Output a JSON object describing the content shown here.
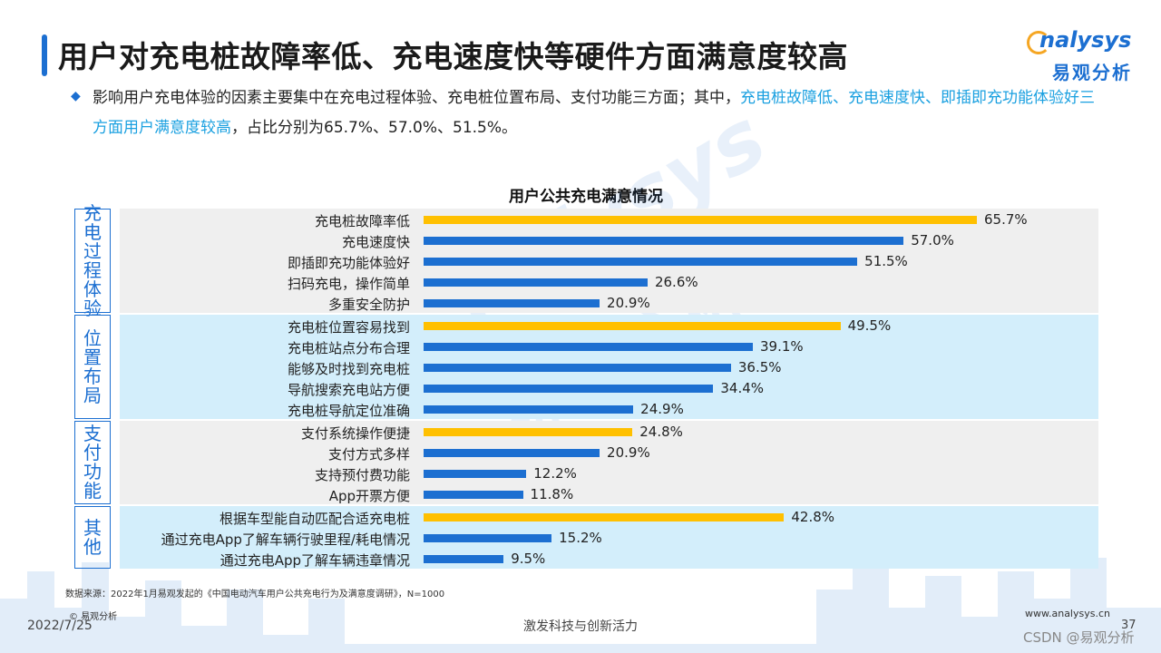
{
  "header": {
    "title": "用户对充电桩故障率低、充电速度快等硬件方面满意度较高",
    "logo_text": "nalysys",
    "logo_cn": "易观分析"
  },
  "description": {
    "part1": "影响用户充电体验的因素主要集中在充电过程体验、充电桩位置布局、支付功能三方面；其中，",
    "highlight": "充电桩故障低、充电速度快、即插即充功能体验好三方面用户满意度较高",
    "part2": "，占比分别为65.7%、57.0%、51.5%。"
  },
  "colors": {
    "highlight_bar": "#ffc000",
    "normal_bar": "#1c6fd1",
    "group_gray": "#efefef",
    "group_blue": "#d3eefb"
  },
  "chart_data": {
    "type": "bar",
    "orientation": "horizontal",
    "title": "用户公共充电满意情况",
    "value_unit": "%",
    "groups": [
      {
        "name": "充电过程体验",
        "items": [
          {
            "label": "充电桩故障率低",
            "value": 65.7,
            "highlight": true
          },
          {
            "label": "充电速度快",
            "value": 57.0,
            "highlight": false
          },
          {
            "label": "即插即充功能体验好",
            "value": 51.5,
            "highlight": false
          },
          {
            "label": "扫码充电，操作简单",
            "value": 26.6,
            "highlight": false
          },
          {
            "label": "多重安全防护",
            "value": 20.9,
            "highlight": false
          }
        ]
      },
      {
        "name": "位置布局",
        "items": [
          {
            "label": "充电桩位置容易找到",
            "value": 49.5,
            "highlight": true
          },
          {
            "label": "充电桩站点分布合理",
            "value": 39.1,
            "highlight": false
          },
          {
            "label": "能够及时找到充电桩",
            "value": 36.5,
            "highlight": false
          },
          {
            "label": "导航搜索充电站方便",
            "value": 34.4,
            "highlight": false
          },
          {
            "label": "充电桩导航定位准确",
            "value": 24.9,
            "highlight": false
          }
        ]
      },
      {
        "name": "支付功能",
        "items": [
          {
            "label": "支付系统操作便捷",
            "value": 24.8,
            "highlight": true
          },
          {
            "label": "支付方式多样",
            "value": 20.9,
            "highlight": false
          },
          {
            "label": "支持预付费功能",
            "value": 12.2,
            "highlight": false
          },
          {
            "label": "App开票方便",
            "value": 11.8,
            "highlight": false
          }
        ]
      },
      {
        "name": "其他",
        "items": [
          {
            "label": "根据车型能自动匹配合适充电桩",
            "value": 42.8,
            "highlight": true
          },
          {
            "label": "通过充电App了解车辆行驶里程/耗电情况",
            "value": 15.2,
            "highlight": false
          },
          {
            "label": "通过充电App了解车辆违章情况",
            "value": 9.5,
            "highlight": false
          }
        ]
      }
    ]
  },
  "footer": {
    "source": "数据来源：2022年1月易观发起的《中国电动汽车用户公共充电行为及满意度调研》，N=1000",
    "copyright": "© 易观分析",
    "date": "2022/7/25",
    "slogan": "激发科技与创新活力",
    "website": "www.analysys.cn",
    "page": "37",
    "csdn": "CSDN @易观分析"
  }
}
